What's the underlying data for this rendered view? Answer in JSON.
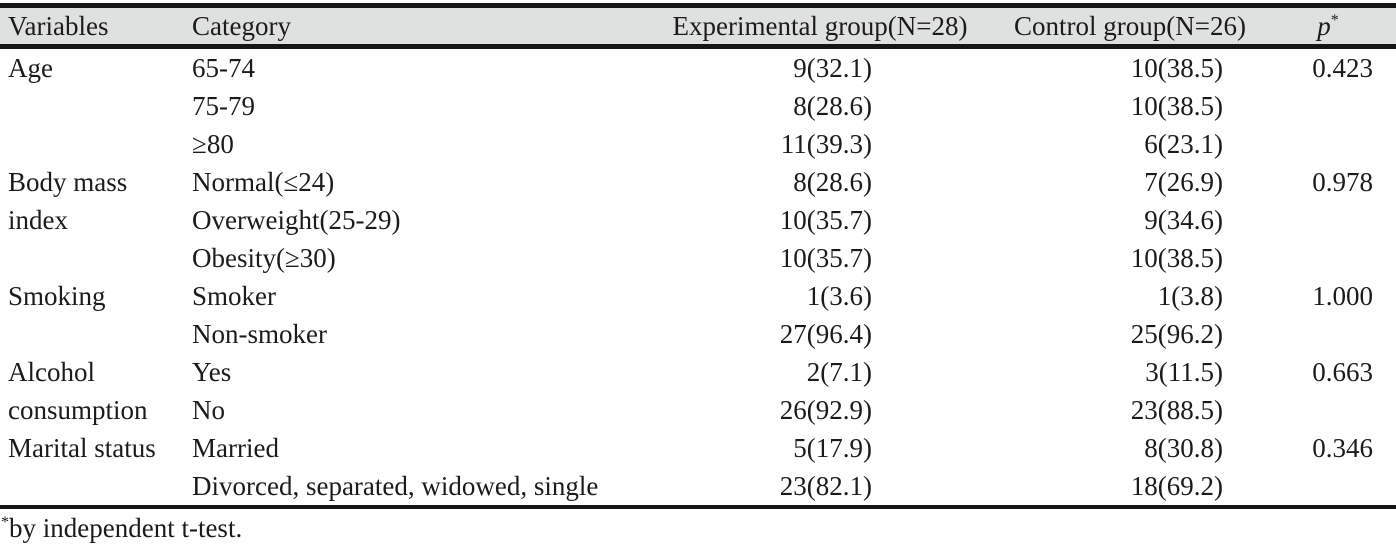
{
  "table": {
    "headers": {
      "variables": "Variables",
      "category": "Category",
      "experimental": "Experimental group(N=28)",
      "control": "Control group(N=26)",
      "p": {
        "label": "p",
        "sup": "*"
      }
    },
    "groups": [
      {
        "variable": "Age",
        "rows": [
          {
            "category": "65-74",
            "experimental": "9(32.1)",
            "control": "10(38.5)",
            "p": "0.423"
          },
          {
            "category": "75-79",
            "experimental": "8(28.6)",
            "control": "10(38.5)",
            "p": ""
          },
          {
            "category": "≥80",
            "experimental": "11(39.3)",
            "control": "6(23.1)",
            "p": ""
          }
        ]
      },
      {
        "variable": "Body mass index",
        "rows": [
          {
            "category": "Normal(≤24)",
            "experimental": "8(28.6)",
            "control": "7(26.9)",
            "p": "0.978"
          },
          {
            "category": "Overweight(25-29)",
            "experimental": "10(35.7)",
            "control": "9(34.6)",
            "p": ""
          },
          {
            "category": "Obesity(≥30)",
            "experimental": "10(35.7)",
            "control": "10(38.5)",
            "p": ""
          }
        ]
      },
      {
        "variable": "Smoking",
        "rows": [
          {
            "category": "Smoker",
            "experimental": "1(3.6)",
            "control": "1(3.8)",
            "p": "1.000"
          },
          {
            "category": "Non-smoker",
            "experimental": "27(96.4)",
            "control": "25(96.2)",
            "p": ""
          }
        ]
      },
      {
        "variable": "Alcohol consumption",
        "rows": [
          {
            "category": "Yes",
            "experimental": "2(7.1)",
            "control": "3(11.5)",
            "p": "0.663"
          },
          {
            "category": "No",
            "experimental": "26(92.9)",
            "control": "23(88.5)",
            "p": ""
          }
        ]
      },
      {
        "variable": "Marital status",
        "rows": [
          {
            "category": "Married",
            "experimental": "5(17.9)",
            "control": "8(30.8)",
            "p": "0.346"
          },
          {
            "category": "Divorced, separated, widowed, single",
            "experimental": "23(82.1)",
            "control": "18(69.2)",
            "p": ""
          }
        ]
      }
    ],
    "footnote": {
      "sup": "*",
      "text": "by independent t-test."
    }
  },
  "colors": {
    "header_background": "#dfe0e0",
    "text": "#1b1b1b",
    "rule_line": "#161616"
  }
}
